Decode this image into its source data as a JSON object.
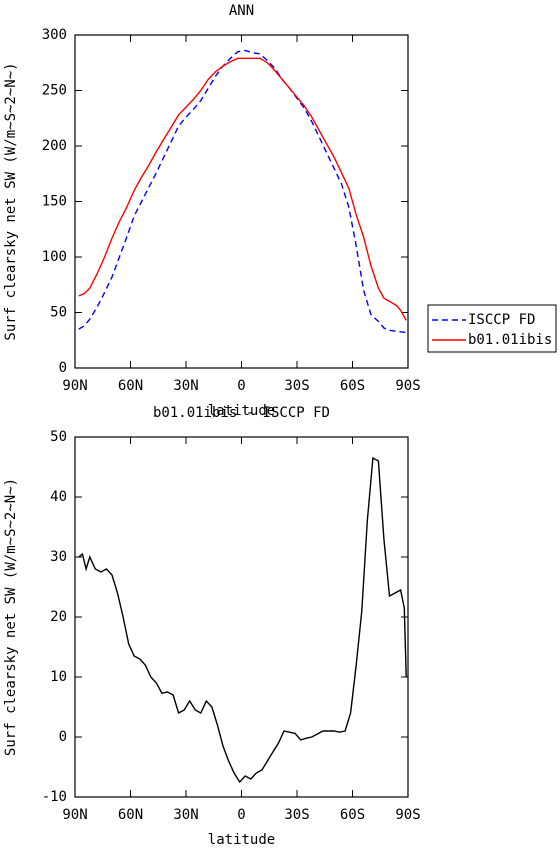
{
  "chart_data": [
    {
      "type": "line",
      "title": "ANN",
      "xlabel": "latitude",
      "ylabel": "Surf clearsky net SW (W/m~S~2~N~)",
      "xlim": [
        90,
        -90
      ],
      "xticks": [
        {
          "value": 90,
          "label": "90N"
        },
        {
          "value": 60,
          "label": "60N"
        },
        {
          "value": 30,
          "label": "30N"
        },
        0,
        {
          "value": -30,
          "label": "30S"
        },
        {
          "value": -60,
          "label": "60S"
        },
        {
          "value": -90,
          "label": "90S"
        }
      ],
      "ylim": [
        0,
        300
      ],
      "yticks": [
        0,
        50,
        100,
        150,
        200,
        250,
        300
      ],
      "legend": "right",
      "series": [
        {
          "name": "ISCCP FD",
          "color": "#0000ff",
          "dash": true,
          "x": [
            88,
            85,
            82,
            78,
            74,
            70,
            66,
            62,
            58,
            54,
            50,
            46,
            42,
            38,
            34,
            30,
            26,
            22,
            18,
            14,
            10,
            6,
            2,
            -2,
            -6,
            -10,
            -14,
            -18,
            -22,
            -26,
            -30,
            -34,
            -38,
            -42,
            -46,
            -50,
            -54,
            -58,
            -62,
            -66,
            -70,
            -74,
            -77,
            -80,
            -84,
            -89
          ],
          "values": [
            35,
            38,
            44,
            55,
            68,
            82,
            100,
            118,
            137,
            150,
            163,
            176,
            190,
            204,
            218,
            226,
            233,
            241,
            252,
            263,
            272,
            279,
            285,
            286,
            284,
            283,
            277,
            270,
            260,
            252,
            243,
            234,
            222,
            208,
            194,
            180,
            166,
            145,
            110,
            70,
            48,
            42,
            36,
            34,
            33,
            32
          ]
        },
        {
          "name": "b01.01ibis",
          "color": "#ff0000",
          "dash": false,
          "x": [
            88,
            85,
            82,
            78,
            74,
            70,
            66,
            62,
            58,
            54,
            50,
            46,
            42,
            38,
            34,
            30,
            26,
            22,
            18,
            14,
            10,
            6,
            2,
            -2,
            -6,
            -10,
            -14,
            -18,
            -22,
            -26,
            -30,
            -34,
            -38,
            -42,
            -46,
            -50,
            -54,
            -58,
            -62,
            -66,
            -70,
            -74,
            -77,
            -80,
            -84,
            -86,
            -89
          ],
          "values": [
            65,
            67,
            72,
            85,
            100,
            117,
            132,
            145,
            160,
            172,
            183,
            195,
            206,
            217,
            228,
            235,
            242,
            250,
            260,
            267,
            272,
            276,
            279,
            279,
            279,
            279,
            275,
            268,
            260,
            252,
            244,
            236,
            226,
            214,
            202,
            190,
            176,
            162,
            138,
            118,
            92,
            72,
            63,
            60,
            56,
            52,
            43
          ]
        }
      ]
    },
    {
      "type": "line",
      "title": "b01.01ibis - ISCCP FD",
      "xlabel": "latitude",
      "ylabel": "Surf clearsky net SW (W/m~S~2~N~)",
      "xlim": [
        90,
        -90
      ],
      "xticks": [
        {
          "value": 90,
          "label": "90N"
        },
        {
          "value": 60,
          "label": "60N"
        },
        {
          "value": 30,
          "label": "30N"
        },
        0,
        {
          "value": -30,
          "label": "30S"
        },
        {
          "value": -60,
          "label": "60S"
        },
        {
          "value": -90,
          "label": "90S"
        }
      ],
      "ylim": [
        -10,
        50
      ],
      "yticks": [
        -10,
        0,
        10,
        20,
        30,
        40,
        50
      ],
      "series": [
        {
          "color": "#000000",
          "dash": false,
          "x": [
            88,
            86,
            84,
            82,
            79,
            76,
            73,
            70,
            67,
            64,
            61,
            58,
            55,
            52,
            49,
            46,
            43,
            40,
            37,
            34,
            31,
            28,
            25,
            22,
            19,
            16,
            13,
            10,
            7,
            4,
            1,
            -2,
            -5,
            -8,
            -11,
            -14,
            -17,
            -20,
            -23,
            -26,
            -29,
            -32,
            -35,
            -38,
            -41,
            -44,
            -47,
            -50,
            -53,
            -56,
            -59,
            -62,
            -65,
            -68,
            -71,
            -74,
            -77,
            -80,
            -83,
            -86,
            -88,
            -89
          ],
          "values": [
            30,
            30.5,
            28,
            30,
            28,
            27.5,
            28,
            27,
            24,
            20,
            15.5,
            13.5,
            13,
            12,
            10,
            9,
            7.3,
            7.5,
            7,
            4,
            4.5,
            6,
            4.5,
            4,
            6,
            5,
            2,
            -1.5,
            -4,
            -6,
            -7.5,
            -6.5,
            -7,
            -6,
            -5.5,
            -4,
            -2.5,
            -1,
            1,
            0.8,
            0.6,
            -0.5,
            -0.2,
            0,
            0.5,
            1,
            1,
            1,
            0.8,
            1,
            4,
            12,
            21,
            36,
            46.5,
            46,
            33,
            23.5,
            24,
            24.5,
            21.5,
            10
          ]
        }
      ]
    }
  ]
}
